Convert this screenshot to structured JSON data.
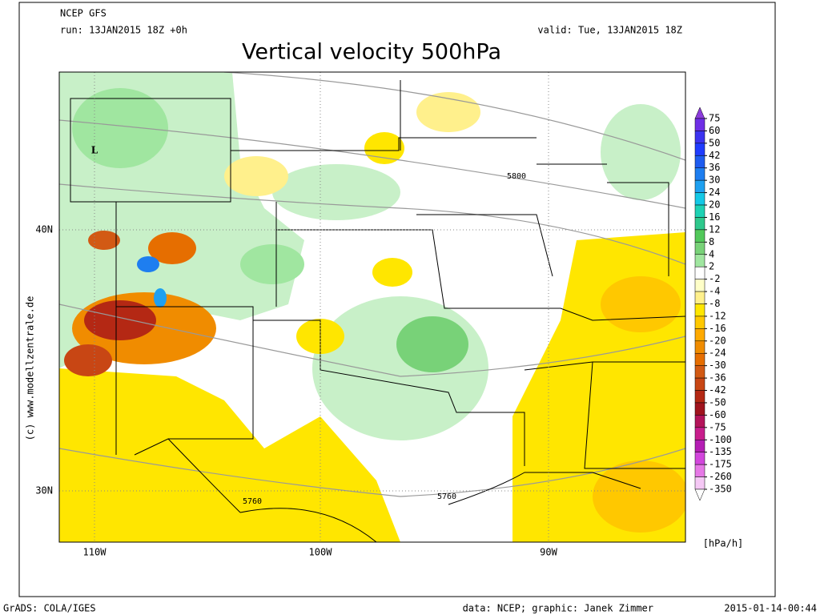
{
  "header": {
    "model": "NCEP GFS",
    "run": "run: 13JAN2015 18Z +0h",
    "valid": "valid: Tue, 13JAN2015 18Z",
    "title": "Vertical velocity 500hPa"
  },
  "map": {
    "lat_labels": [
      "40N",
      "30N"
    ],
    "lon_labels": [
      "110W",
      "100W",
      "90W"
    ],
    "low_marker": "L",
    "contour_labels": [
      "5800",
      "5760",
      "5760"
    ],
    "copyright": "(c) www.modellzentrale.de"
  },
  "colorbar": {
    "unit": "[hPa/h]",
    "levels": [
      75,
      60,
      50,
      42,
      36,
      30,
      24,
      20,
      16,
      12,
      8,
      4,
      2,
      -2,
      -4,
      -8,
      -12,
      -16,
      -20,
      -24,
      -30,
      -36,
      -42,
      -50,
      -60,
      -75,
      -100,
      -135,
      -175,
      -260,
      -350
    ],
    "colors": [
      "#8c3cdc",
      "#6f2fe6",
      "#3c33f0",
      "#1f3cff",
      "#1e5cf0",
      "#1e7ef0",
      "#1ea0f0",
      "#14c8e6",
      "#1ed2b4",
      "#2ec88c",
      "#52c85a",
      "#78d278",
      "#a0e6a0",
      "#ffffff",
      "#ffffc8",
      "#fff08c",
      "#ffe600",
      "#ffc800",
      "#ffaa00",
      "#f08c00",
      "#e66e00",
      "#d25a14",
      "#c84614",
      "#b42814",
      "#a0141e",
      "#b4145a",
      "#c81e8c",
      "#b41eb4",
      "#d246dc",
      "#e678e6",
      "#f5c8f5",
      "#ffffff"
    ]
  },
  "footer": {
    "left": "GrADS: COLA/IGES",
    "center": "data: NCEP; graphic: Janek Zimmer",
    "right": "2015-01-14-00:44"
  }
}
